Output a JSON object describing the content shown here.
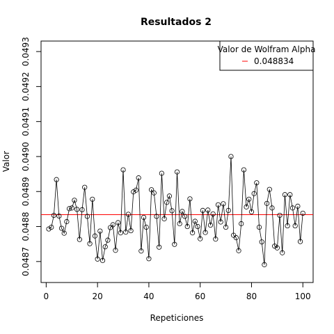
{
  "chart_data": {
    "type": "scatter",
    "title": "Resultados 2",
    "xlabel": "Repeticiones",
    "ylabel": "Valor",
    "xlim": [
      -2,
      104
    ],
    "ylim": [
      0.04864,
      0.04933
    ],
    "xticks": [
      0,
      20,
      40,
      60,
      80,
      100
    ],
    "yticks": [
      0.0487,
      0.0488,
      0.0489,
      0.049,
      0.0491,
      0.0492,
      0.0493
    ],
    "ytick_labels": [
      "0.0487",
      "0.0488",
      "0.0489",
      "0.0490",
      "0.0491",
      "0.0492",
      "0.0493"
    ],
    "grid": false,
    "point_style": "open-circle-connected-by-line",
    "reference_line": {
      "value": 0.048834,
      "color": "#ff0000"
    },
    "legend": {
      "title": "Valor de Wolfram Alpha",
      "entries": [
        {
          "label": "0.048834",
          "color": "#ff0000"
        }
      ],
      "placement": "top-right"
    },
    "x": [
      1,
      2,
      3,
      4,
      5,
      6,
      7,
      8,
      9,
      10,
      11,
      12,
      13,
      14,
      15,
      16,
      17,
      18,
      19,
      20,
      21,
      22,
      23,
      24,
      25,
      26,
      27,
      28,
      29,
      30,
      31,
      32,
      33,
      34,
      35,
      36,
      37,
      38,
      39,
      40,
      41,
      42,
      43,
      44,
      45,
      46,
      47,
      48,
      49,
      50,
      51,
      52,
      53,
      54,
      55,
      56,
      57,
      58,
      59,
      60,
      61,
      62,
      63,
      64,
      65,
      66,
      67,
      68,
      69,
      70,
      71,
      72,
      73,
      74,
      75,
      76,
      77,
      78,
      79,
      80,
      81,
      82,
      83,
      84,
      85,
      86,
      87,
      88,
      89,
      90,
      91,
      92,
      93,
      94,
      95,
      96,
      97,
      98,
      99,
      100
    ],
    "y": [
      0.048793,
      0.048798,
      0.048832,
      0.048934,
      0.04883,
      0.048795,
      0.048781,
      0.048814,
      0.048851,
      0.048853,
      0.048875,
      0.048849,
      0.048763,
      0.048848,
      0.048912,
      0.048829,
      0.048751,
      0.048878,
      0.048773,
      0.048707,
      0.048787,
      0.048703,
      0.048742,
      0.048761,
      0.048797,
      0.048805,
      0.048732,
      0.048811,
      0.048782,
      0.048962,
      0.048784,
      0.048835,
      0.048788,
      0.048899,
      0.048904,
      0.048939,
      0.04873,
      0.048826,
      0.048798,
      0.048708,
      0.048905,
      0.048896,
      0.048829,
      0.048741,
      0.048952,
      0.048822,
      0.048869,
      0.048887,
      0.048845,
      0.048749,
      0.048956,
      0.048808,
      0.048843,
      0.048829,
      0.0488,
      0.048879,
      0.048782,
      0.048815,
      0.0488,
      0.048765,
      0.048846,
      0.048783,
      0.048847,
      0.048804,
      0.048836,
      0.048764,
      0.048862,
      0.048813,
      0.048865,
      0.048798,
      0.048846,
      0.049,
      0.048775,
      0.048768,
      0.048731,
      0.048808,
      0.048962,
      0.048856,
      0.048878,
      0.048842,
      0.048894,
      0.048925,
      0.048798,
      0.048756,
      0.048691,
      0.048866,
      0.048906,
      0.048853,
      0.048744,
      0.048739,
      0.048832,
      0.048725,
      0.048891,
      0.048802,
      0.048891,
      0.048853,
      0.048802,
      0.048858,
      0.048757,
      0.048838
    ]
  }
}
